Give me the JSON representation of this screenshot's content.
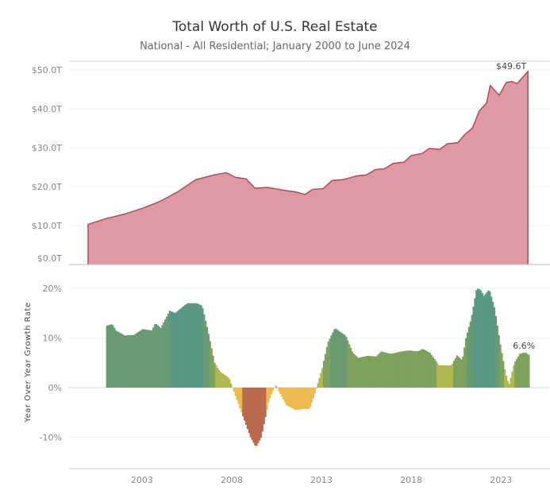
{
  "chart_data": [
    {
      "type": "area",
      "title": "Total Worth of U.S. Real Estate",
      "subtitle": "National - All Residential; January 2000 to June 2024",
      "ylabel": "",
      "ylim": [
        0,
        50
      ],
      "yticks": [
        0,
        10,
        20,
        30,
        40,
        50
      ],
      "ytick_labels": [
        "$0.0T",
        "$10.0T",
        "$20.0T",
        "$30.0T",
        "$40.0T",
        "$50.0T"
      ],
      "color": "#dd9aa2",
      "line_color": "#b24a5a",
      "end_label": "$49.6T",
      "x": [
        2000.0,
        2001.0,
        2002.0,
        2003.0,
        2004.0,
        2005.0,
        2006.0,
        2007.0,
        2007.7,
        2008.2,
        2008.8,
        2009.3,
        2010.0,
        2010.5,
        2011.0,
        2011.5,
        2012.1,
        2012.5,
        2013.1,
        2013.6,
        2014.2,
        2015.0,
        2015.5,
        2016.0,
        2016.5,
        2017.0,
        2017.6,
        2018.0,
        2018.6,
        2019.0,
        2019.6,
        2020.0,
        2020.6,
        2021.0,
        2021.4,
        2021.8,
        2022.2,
        2022.4,
        2022.9,
        2023.3,
        2023.6,
        2023.9,
        2024.5
      ],
      "values": [
        10.3,
        11.8,
        12.9,
        14.4,
        16.2,
        18.7,
        21.8,
        23.0,
        23.6,
        22.4,
        22.0,
        19.6,
        19.8,
        19.4,
        19.0,
        18.7,
        18.0,
        19.3,
        19.5,
        21.6,
        21.8,
        22.8,
        23.0,
        24.4,
        24.6,
        26.0,
        26.3,
        28.0,
        28.5,
        29.8,
        29.6,
        31.0,
        31.3,
        33.5,
        35.0,
        39.5,
        41.5,
        46.0,
        43.5,
        46.8,
        47.0,
        46.5,
        49.6
      ]
    },
    {
      "type": "bar",
      "ylabel": "Year Over Year Growth Rate",
      "ylim": [
        -15,
        22
      ],
      "yticks": [
        -10,
        0,
        10,
        20
      ],
      "ytick_labels": [
        "-10%",
        "0%",
        "10%",
        "20%"
      ],
      "xticks": [
        2003,
        2008,
        2013,
        2018,
        2023
      ],
      "xtick_labels": [
        "2003",
        "2008",
        "2013",
        "2018",
        "2023"
      ],
      "end_label": "6.6%",
      "colors": {
        "gt15": "#5a9784",
        "10to15": "#6a9a74",
        "5to10": "#7fa15e",
        "0to5": "#b1b84f",
        "0toneg5": "#ecba4f",
        "ltneg5": "#b96a4d"
      },
      "x": [
        2001.0,
        2001.3,
        2001.5,
        2002.0,
        2002.5,
        2003.0,
        2003.5,
        2003.7,
        2004.0,
        2004.5,
        2004.8,
        2005.3,
        2005.5,
        2006.0,
        2006.3,
        2006.6,
        2007.0,
        2007.3,
        2007.8,
        2008.0,
        2008.3,
        2008.6,
        2009.0,
        2009.3,
        2009.6,
        2010.0,
        2010.2,
        2010.4,
        2010.7,
        2011.0,
        2011.5,
        2012.0,
        2012.3,
        2012.6,
        2013.0,
        2013.3,
        2013.7,
        2014.0,
        2014.3,
        2014.7,
        2015.0,
        2015.5,
        2016.0,
        2016.3,
        2016.8,
        2017.3,
        2017.8,
        2018.3,
        2018.6,
        2019.0,
        2019.3,
        2019.5,
        2020.2,
        2020.5,
        2020.8,
        2021.0,
        2021.3,
        2021.6,
        2021.8,
        2022.0,
        2022.3,
        2022.6,
        2022.9,
        2023.2,
        2023.4,
        2023.7,
        2024.0,
        2024.3,
        2024.5
      ],
      "values": [
        12.5,
        12.8,
        11.5,
        10.5,
        10.6,
        11.8,
        11.5,
        13.0,
        12.0,
        15.5,
        15.0,
        16.5,
        17.0,
        17.0,
        16.5,
        12.0,
        5.0,
        3.2,
        2.0,
        0.0,
        -3.0,
        -6.0,
        -10.0,
        -12.0,
        -10.0,
        -3.0,
        -1.0,
        0.5,
        -1.5,
        -3.5,
        -4.5,
        -4.3,
        -4.3,
        -1.0,
        4.0,
        9.0,
        12.0,
        11.2,
        10.5,
        7.0,
        6.0,
        6.4,
        6.3,
        7.3,
        6.8,
        7.2,
        7.5,
        7.3,
        7.8,
        7.0,
        5.5,
        4.5,
        4.5,
        6.5,
        5.5,
        10.0,
        14.0,
        20.0,
        19.8,
        18.5,
        19.8,
        16.0,
        9.0,
        3.0,
        0.5,
        5.0,
        6.8,
        7.1,
        6.6
      ]
    }
  ]
}
